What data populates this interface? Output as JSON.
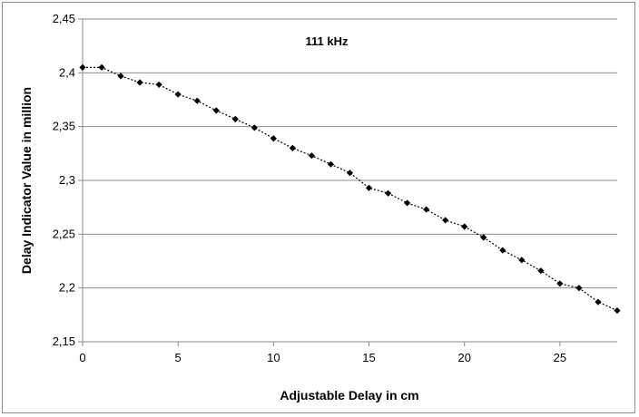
{
  "chart_data": {
    "type": "line",
    "title": "",
    "annotation": "111 kHz",
    "xlabel": "Adjustable Delay in cm",
    "ylabel": "Delay Indicator Value in million",
    "xlim": [
      0,
      28
    ],
    "ylim": [
      2.15,
      2.45
    ],
    "x_ticks": [
      0,
      5,
      10,
      15,
      20,
      25
    ],
    "x_tick_labels": [
      "0",
      "5",
      "10",
      "15",
      "20",
      "25"
    ],
    "y_ticks": [
      2.15,
      2.2,
      2.25,
      2.3,
      2.35,
      2.4,
      2.45
    ],
    "y_tick_labels": [
      "2,15",
      "2,2",
      "2,25",
      "2,3",
      "2,35",
      "2,4",
      "2,45"
    ],
    "grid": "horizontal",
    "legend": "none",
    "series": [
      {
        "line_style": "dotted",
        "marker": "diamond",
        "color": "#000000",
        "x": [
          0,
          1,
          2,
          3,
          4,
          5,
          6,
          7,
          8,
          9,
          10,
          11,
          12,
          13,
          14,
          15,
          16,
          17,
          18,
          19,
          20,
          21,
          22,
          23,
          24,
          25,
          26,
          27,
          28
        ],
        "y": [
          2.405,
          2.405,
          2.397,
          2.391,
          2.389,
          2.38,
          2.374,
          2.365,
          2.357,
          2.349,
          2.339,
          2.33,
          2.323,
          2.315,
          2.307,
          2.293,
          2.288,
          2.279,
          2.273,
          2.263,
          2.257,
          2.247,
          2.235,
          2.226,
          2.216,
          2.204,
          2.2,
          2.187,
          2.179
        ]
      }
    ]
  },
  "colors": {
    "grid": "#8c8c8c",
    "axis": "#8c8c8c",
    "series": "#000000"
  }
}
